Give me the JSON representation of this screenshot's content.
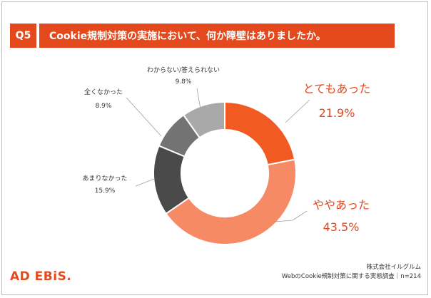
{
  "header": {
    "question_number": "Q5",
    "question_text": "Cookie規制対策の実施において、何か障壁はありましたか。"
  },
  "chart_data": {
    "type": "pie",
    "donut": true,
    "categories": [
      "とてもあった",
      "ややあった",
      "あまりなかった",
      "全くなかった",
      "わからない/答えられない"
    ],
    "values": [
      21.9,
      43.5,
      15.9,
      8.9,
      9.8
    ],
    "value_labels": [
      "21.9%",
      "43.5%",
      "15.9%",
      "8.9%",
      "9.8%"
    ],
    "colors": [
      "#f15a22",
      "#f58a65",
      "#4a4a4a",
      "#737373",
      "#a9a9a9"
    ],
    "start": "top",
    "direction": "clockwise"
  },
  "footer": {
    "logo": "AD EBiS.",
    "company": "株式会社イルグルム",
    "survey": "WebのCookie規制対策に関する実態調査｜n=214"
  }
}
